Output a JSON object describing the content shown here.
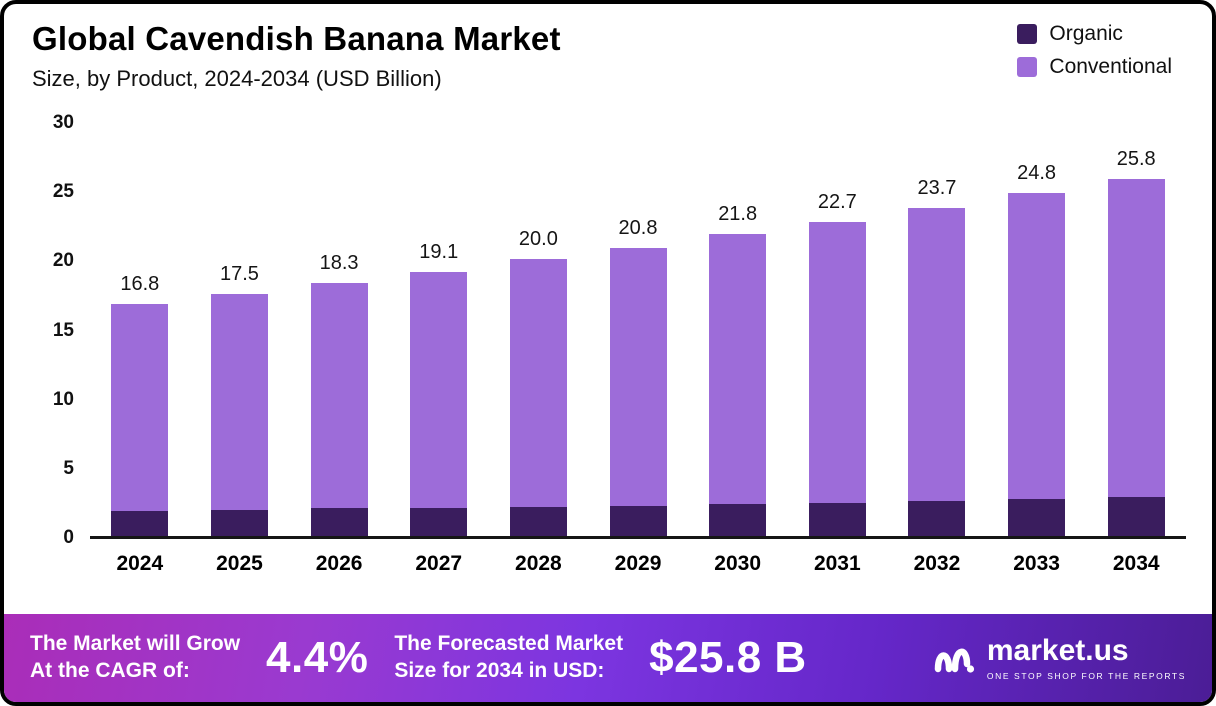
{
  "header": {
    "title": "Global Cavendish Banana Market",
    "subtitle": "Size, by Product, 2024-2034 (USD Billion)"
  },
  "legend": [
    {
      "label": "Organic",
      "color": "#3a1d5e"
    },
    {
      "label": "Conventional",
      "color": "#9d6cd9"
    }
  ],
  "chart_data": {
    "type": "bar",
    "stacked": true,
    "title": "Global Cavendish Banana Market Size, by Product, 2024-2034 (USD Billion)",
    "categories": [
      "2024",
      "2025",
      "2026",
      "2027",
      "2028",
      "2029",
      "2030",
      "2031",
      "2032",
      "2033",
      "2034"
    ],
    "series": [
      {
        "name": "Organic",
        "color": "#3a1d5e",
        "values": [
          1.8,
          1.9,
          2.0,
          2.0,
          2.1,
          2.2,
          2.3,
          2.4,
          2.5,
          2.7,
          2.8
        ]
      },
      {
        "name": "Conventional",
        "color": "#9d6cd9",
        "values": [
          15.0,
          15.6,
          16.3,
          17.1,
          17.9,
          18.6,
          19.5,
          20.3,
          21.2,
          22.1,
          23.0
        ]
      }
    ],
    "totals": [
      16.8,
      17.5,
      18.3,
      19.1,
      20.0,
      20.8,
      21.8,
      22.7,
      23.7,
      24.8,
      25.8
    ],
    "ylim": [
      0,
      30
    ],
    "yticks": [
      0,
      5,
      10,
      15,
      20,
      25,
      30
    ],
    "grid": false,
    "legend_position": "top-right"
  },
  "footer": {
    "left_label": "The Market will Grow\nAt the CAGR of:",
    "cagr": "4.4%",
    "mid_label": "The Forecasted Market\nSize for 2034 in USD:",
    "forecast": "$25.8 B",
    "brand": "market.us",
    "brand_tagline": "ONE STOP SHOP FOR THE REPORTS"
  }
}
